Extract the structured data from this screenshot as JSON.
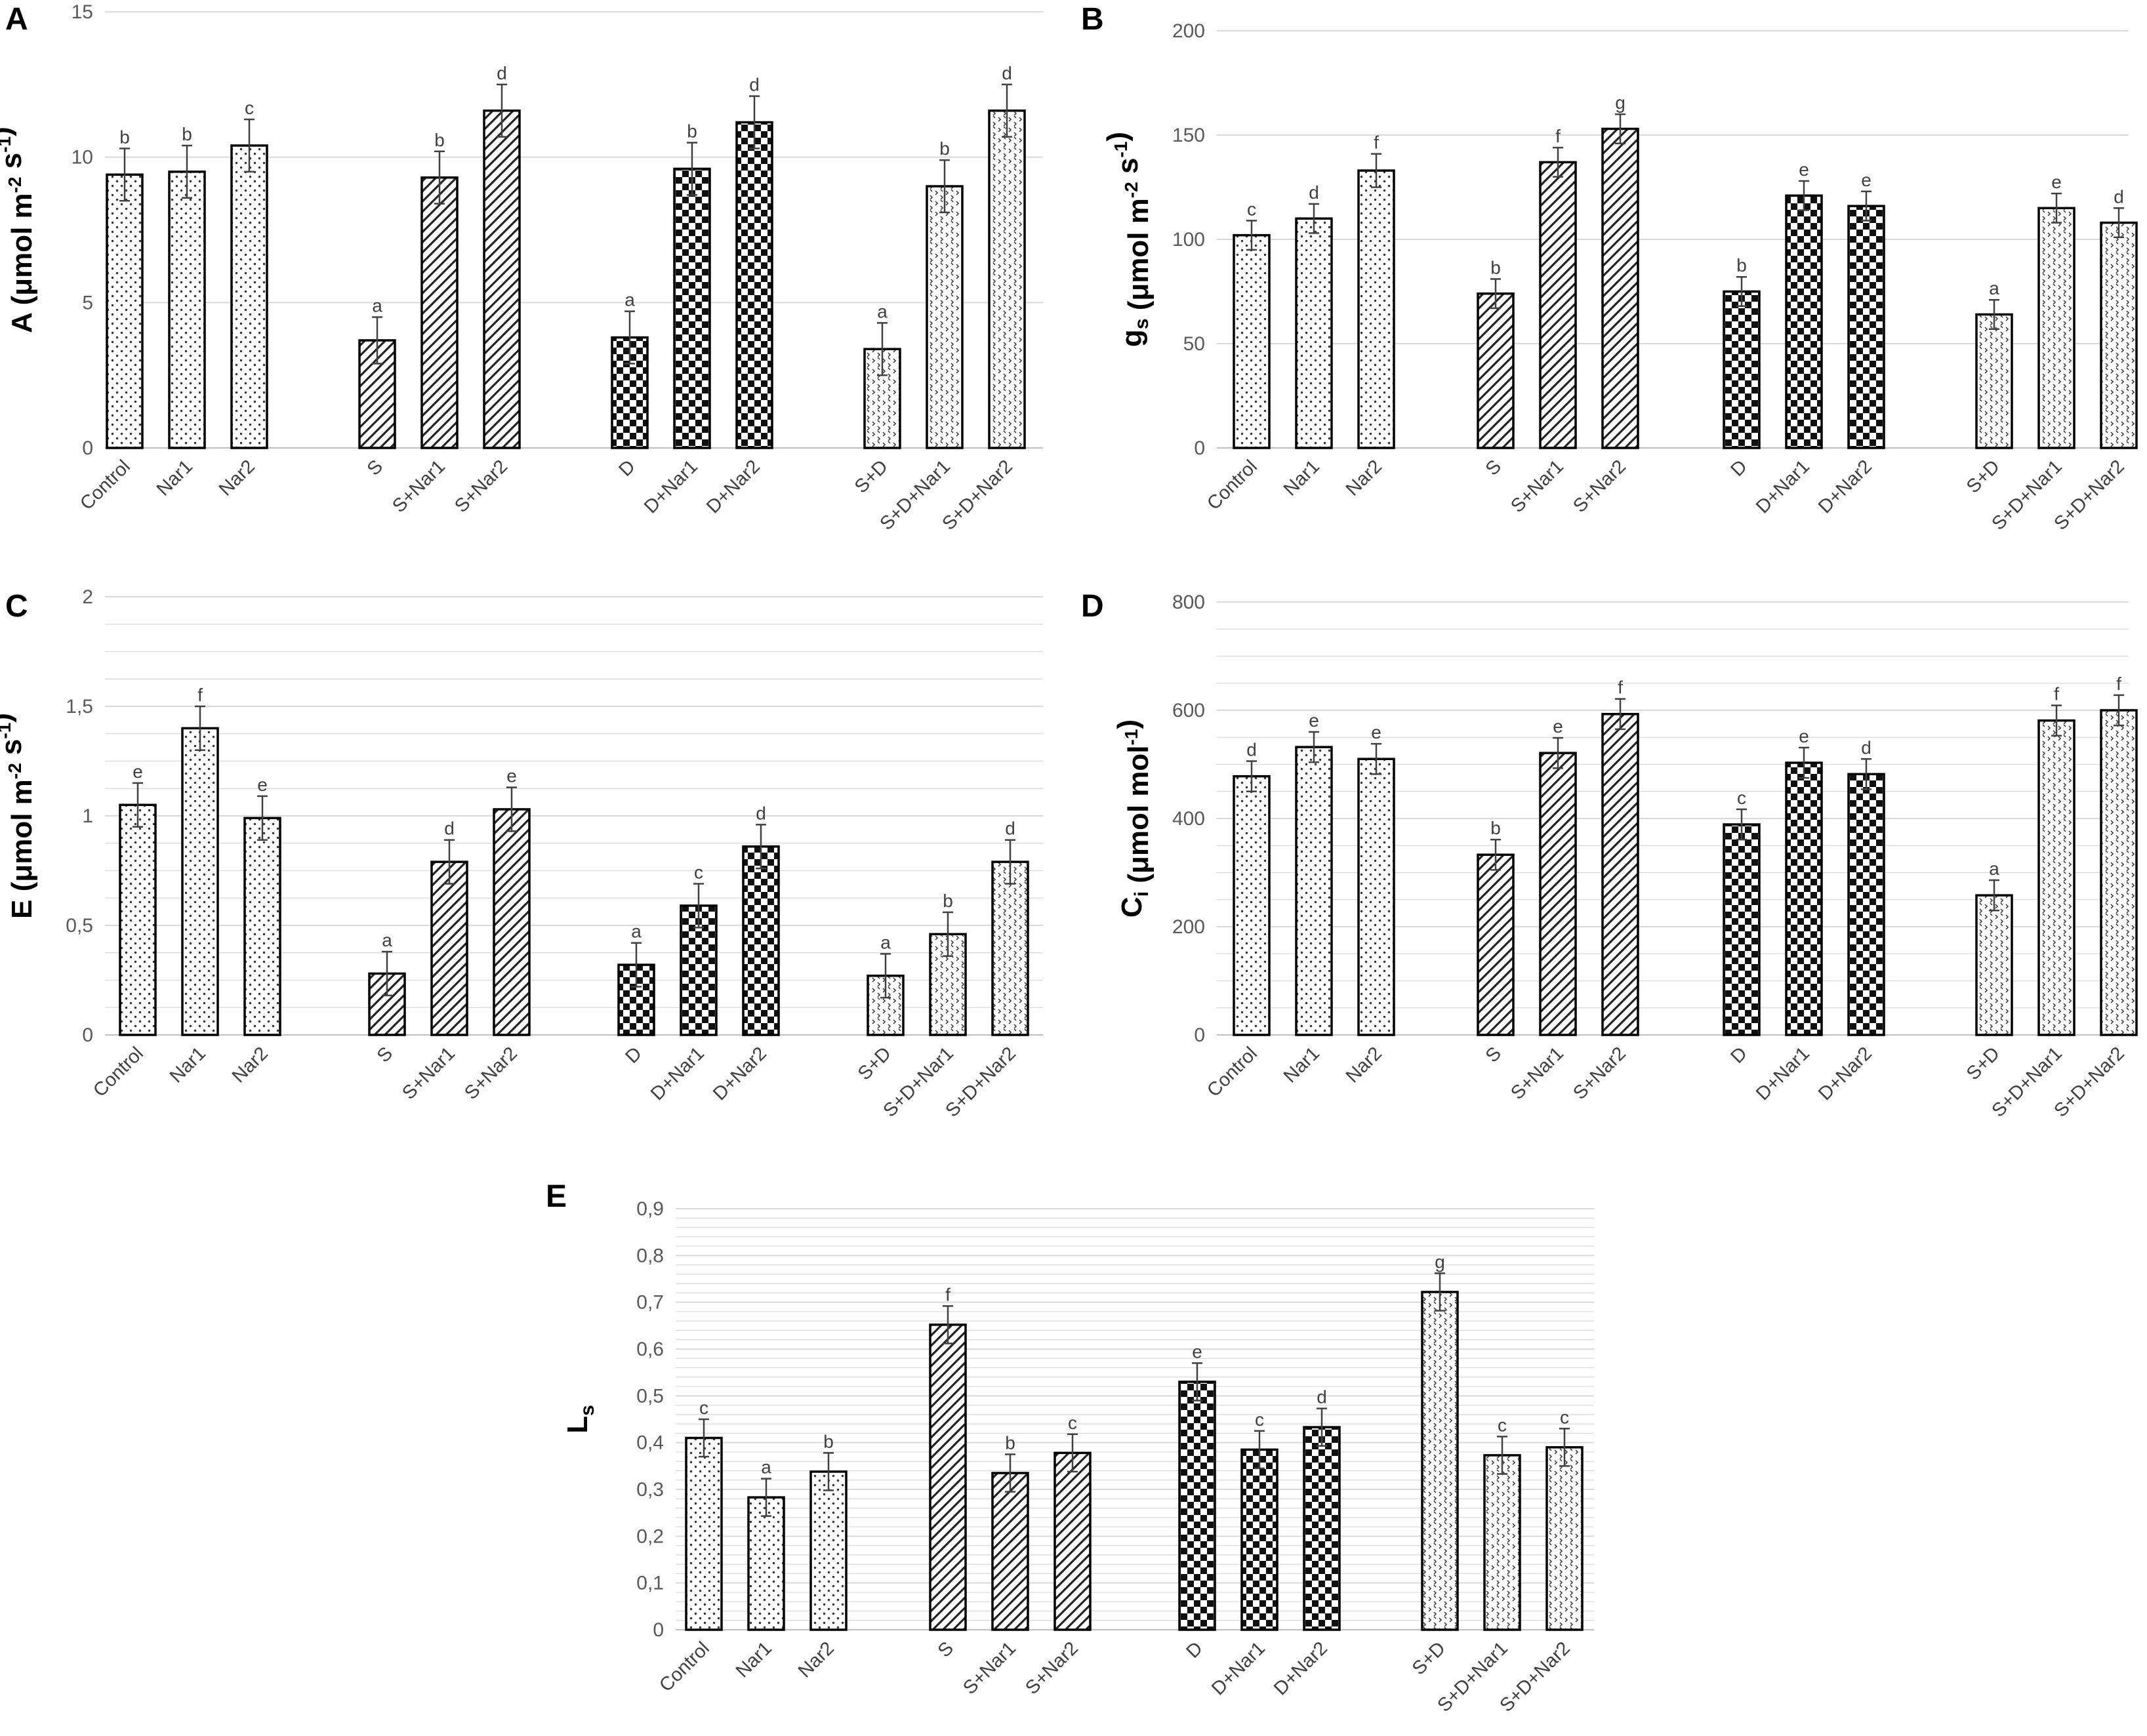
{
  "chart_data": [
    {
      "panel": "A",
      "type": "bar",
      "ylabel_parts": [
        [
          "A (μmol m",
          ""
        ],
        [
          "-2",
          "sup"
        ],
        [
          " s",
          ""
        ],
        [
          "-1",
          "sup"
        ],
        [
          ")",
          ""
        ]
      ],
      "ylim": [
        0,
        15
      ],
      "yticks": [
        "0",
        "5",
        "10",
        "15"
      ],
      "groups": [
        [
          "Control",
          "Nar1",
          "Nar2"
        ],
        [
          "S",
          "S+Nar1",
          "S+Nar2"
        ],
        [
          "D",
          "D+Nar1",
          "D+Nar2"
        ],
        [
          "S+D",
          "S+D+Nar1",
          "S+D+Nar2"
        ]
      ],
      "values": [
        9.4,
        9.5,
        10.4,
        3.7,
        9.3,
        11.6,
        3.8,
        9.6,
        11.2,
        3.4,
        9.0,
        11.6
      ],
      "errors": [
        0.9,
        0.9,
        0.9,
        0.8,
        0.9,
        0.9,
        0.9,
        0.9,
        0.9,
        0.9,
        0.9,
        0.9
      ],
      "letters": [
        "b",
        "b",
        "c",
        "a",
        "b",
        "d",
        "a",
        "b",
        "d",
        "a",
        "b",
        "d"
      ]
    },
    {
      "panel": "B",
      "type": "bar",
      "ylabel_parts": [
        [
          "g",
          ""
        ],
        [
          "s",
          "sub"
        ],
        [
          " (μmol m",
          ""
        ],
        [
          "-2",
          "sup"
        ],
        [
          " s",
          ""
        ],
        [
          "-1",
          "sup"
        ],
        [
          ")",
          ""
        ]
      ],
      "ylim": [
        0,
        200
      ],
      "yticks": [
        "0",
        "50",
        "100",
        "150",
        "200"
      ],
      "groups": [
        [
          "Control",
          "Nar1",
          "Nar2"
        ],
        [
          "S",
          "S+Nar1",
          "S+Nar2"
        ],
        [
          "D",
          "D+Nar1",
          "D+Nar2"
        ],
        [
          "S+D",
          "S+D+Nar1",
          "S+D+Nar2"
        ]
      ],
      "values": [
        102,
        110,
        133,
        74,
        137,
        153,
        75,
        121,
        116,
        64,
        115,
        108
      ],
      "errors": [
        7,
        7,
        8,
        7,
        7,
        7,
        7,
        7,
        7,
        7,
        7,
        7
      ],
      "letters": [
        "c",
        "d",
        "f",
        "b",
        "f",
        "g",
        "b",
        "e",
        "e",
        "a",
        "e",
        "d"
      ]
    },
    {
      "panel": "C",
      "type": "bar",
      "ylabel_parts": [
        [
          "E (μmol m",
          ""
        ],
        [
          "-2",
          "sup"
        ],
        [
          " s",
          ""
        ],
        [
          "-1",
          "sup"
        ],
        [
          ")",
          ""
        ]
      ],
      "ylim": [
        0,
        2
      ],
      "yticks": [
        "0",
        "0,5",
        "1",
        "1,5",
        "2"
      ],
      "groups": [
        [
          "Control",
          "Nar1",
          "Nar2"
        ],
        [
          "S",
          "S+Nar1",
          "S+Nar2"
        ],
        [
          "D",
          "D+Nar1",
          "D+Nar2"
        ],
        [
          "S+D",
          "S+D+Nar1",
          "S+D+Nar2"
        ]
      ],
      "values": [
        1.05,
        1.4,
        0.99,
        0.28,
        0.79,
        1.03,
        0.32,
        0.59,
        0.86,
        0.27,
        0.46,
        0.79
      ],
      "errors": [
        0.1,
        0.1,
        0.1,
        0.1,
        0.1,
        0.1,
        0.1,
        0.1,
        0.1,
        0.1,
        0.1,
        0.1
      ],
      "letters": [
        "e",
        "f",
        "e",
        "a",
        "d",
        "e",
        "a",
        "c",
        "d",
        "a",
        "b",
        "d"
      ]
    },
    {
      "panel": "D",
      "type": "bar",
      "ylabel_parts": [
        [
          "C",
          ""
        ],
        [
          "i",
          "sub"
        ],
        [
          " (μmol mol",
          ""
        ],
        [
          "-1",
          "sup"
        ],
        [
          ")",
          ""
        ]
      ],
      "ylim": [
        0,
        800
      ],
      "yticks": [
        "0",
        "200",
        "400",
        "600",
        "800"
      ],
      "groups": [
        [
          "Control",
          "Nar1",
          "Nar2"
        ],
        [
          "S",
          "S+Nar1",
          "S+Nar2"
        ],
        [
          "D",
          "D+Nar1",
          "D+Nar2"
        ],
        [
          "S+D",
          "S+D+Nar1",
          "S+D+Nar2"
        ]
      ],
      "values": [
        478,
        532,
        510,
        333,
        521,
        593,
        389,
        503,
        482,
        258,
        581,
        600
      ],
      "errors": [
        28,
        28,
        28,
        28,
        28,
        28,
        28,
        28,
        28,
        28,
        28,
        28
      ],
      "letters": [
        "d",
        "e",
        "e",
        "b",
        "e",
        "f",
        "c",
        "e",
        "d",
        "a",
        "f",
        "f"
      ]
    },
    {
      "panel": "E",
      "type": "bar",
      "ylabel_parts": [
        [
          "L",
          ""
        ],
        [
          "s",
          "sub"
        ]
      ],
      "ylim": [
        0,
        0.9
      ],
      "yticks": [
        "0",
        "0,1",
        "0,2",
        "0,3",
        "0,4",
        "0,5",
        "0,6",
        "0,7",
        "0,8",
        "0,9"
      ],
      "groups": [
        [
          "Control",
          "Nar1",
          "Nar2"
        ],
        [
          "S",
          "S+Nar1",
          "S+Nar2"
        ],
        [
          "D",
          "D+Nar1",
          "D+Nar2"
        ],
        [
          "S+D",
          "S+D+Nar1",
          "S+D+Nar2"
        ]
      ],
      "values": [
        0.41,
        0.283,
        0.338,
        0.652,
        0.335,
        0.378,
        0.53,
        0.385,
        0.433,
        0.722,
        0.373,
        0.39
      ],
      "errors": [
        0.04,
        0.04,
        0.04,
        0.04,
        0.04,
        0.04,
        0.04,
        0.04,
        0.04,
        0.04,
        0.04,
        0.04
      ],
      "letters": [
        "c",
        "a",
        "b",
        "f",
        "b",
        "c",
        "e",
        "c",
        "d",
        "g",
        "c",
        "c"
      ]
    }
  ],
  "colors": {
    "bar_edge": "#000000",
    "grid": "#d9d9d9",
    "tick_text": "#595959",
    "error_bar": "#404040"
  }
}
